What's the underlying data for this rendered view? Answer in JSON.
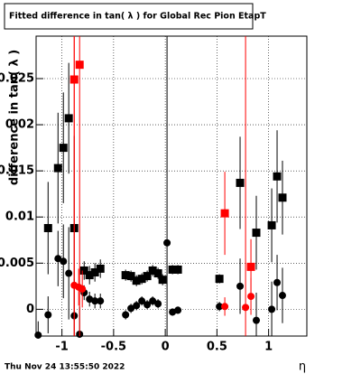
{
  "chart_data": {
    "type": "scatter",
    "title": "Fitted difference in tan( λ ) for Global Rec Pion EtapT",
    "y_label": "difference in tan( λ )",
    "x_label": "η",
    "timestamp": "Thu Nov 24 13:55:50 2022",
    "xlim": [
      -1.25,
      1.37
    ],
    "ylim": [
      -0.0029,
      0.0296
    ],
    "xticks": [
      -1,
      -0.5,
      0,
      0.5,
      1
    ],
    "yticks": [
      0,
      0.005,
      0.01,
      0.015,
      0.02,
      0.025
    ],
    "grid": true,
    "series": [
      {
        "color": "#000000",
        "marker": "square",
        "x": [
          -1.134,
          -1.038,
          -0.986,
          -0.934,
          -0.881,
          -0.785,
          -0.733,
          -0.681,
          -0.628,
          -0.384,
          -0.332,
          -0.279,
          -0.227,
          -0.175,
          -0.122,
          -0.07,
          -0.026,
          0.07,
          0.122,
          0.524,
          0.724,
          0.881,
          1.03,
          1.082,
          1.134
        ],
        "values": [
          0.0088,
          0.0153,
          0.0175,
          0.0207,
          0.0088,
          0.0042,
          0.0037,
          0.004,
          0.0044,
          0.0037,
          0.0036,
          0.0031,
          0.0033,
          0.0036,
          0.0042,
          0.0039,
          0.0032,
          0.0043,
          0.0043,
          0.0033,
          0.0137,
          0.0083,
          0.0091,
          0.0144,
          0.0121
        ],
        "errors": [
          0.005,
          0.006,
          0.006,
          0.006,
          0.01,
          0.001,
          0.001,
          0.001,
          0.001,
          0.0006,
          0.0006,
          0.0006,
          0.0006,
          0.0006,
          0.0006,
          0.0006,
          0.0006,
          0.0005,
          0.0005,
          0.0005,
          0.005,
          0.004,
          0.004,
          0.005,
          0.004
        ]
      },
      {
        "color": "#000000",
        "marker": "circle",
        "x": [
          -1.23,
          -1.134,
          -1.038,
          -0.986,
          -0.934,
          -0.881,
          -0.829,
          -0.785,
          -0.733,
          -0.681,
          -0.628,
          -0.384,
          -0.332,
          -0.279,
          -0.227,
          -0.175,
          -0.122,
          -0.07,
          0.017,
          0.07,
          0.122,
          0.524,
          0.724,
          0.881,
          1.03,
          1.082,
          1.134
        ],
        "values": [
          -0.0028,
          -0.0006,
          0.0055,
          0.0052,
          0.0039,
          -0.0007,
          -0.0027,
          0.0018,
          0.0011,
          0.0009,
          0.0009,
          -0.0006,
          0.0001,
          0.0004,
          0.0009,
          0.0005,
          0.0009,
          0.0006,
          0.0072,
          -0.0003,
          -0.0001,
          0.0003,
          0.0025,
          -0.0012,
          0.0,
          0.0029,
          0.0015
        ],
        "errors": [
          0.0015,
          0.002,
          0.003,
          0.004,
          0.005,
          0.004,
          0.003,
          0.0008,
          0.0008,
          0.0008,
          0.0008,
          0.0005,
          0.0005,
          0.0005,
          0.0005,
          0.0005,
          0.0005,
          0.0005,
          0.03,
          0.0004,
          0.0004,
          0.0005,
          0.003,
          0.003,
          0.003,
          0.003,
          0.003
        ]
      },
      {
        "color": "#ff0000",
        "marker": "square",
        "x": [
          -0.881,
          -0.829,
          0.576,
          0.829
        ],
        "values": [
          0.0249,
          0.0265,
          0.0104,
          0.0046
        ],
        "errors": [
          0.03,
          0.03,
          0.0045,
          0.003
        ]
      },
      {
        "color": "#ff0000",
        "marker": "circle",
        "x": [
          -0.881,
          -0.838,
          -0.803,
          0.576,
          0.777,
          0.829
        ],
        "values": [
          0.0026,
          0.0024,
          0.0022,
          0.0003,
          0.0002,
          0.0014
        ],
        "errors": [
          0.03,
          0.002,
          0.002,
          0.001,
          0.03,
          0.002
        ]
      }
    ]
  }
}
